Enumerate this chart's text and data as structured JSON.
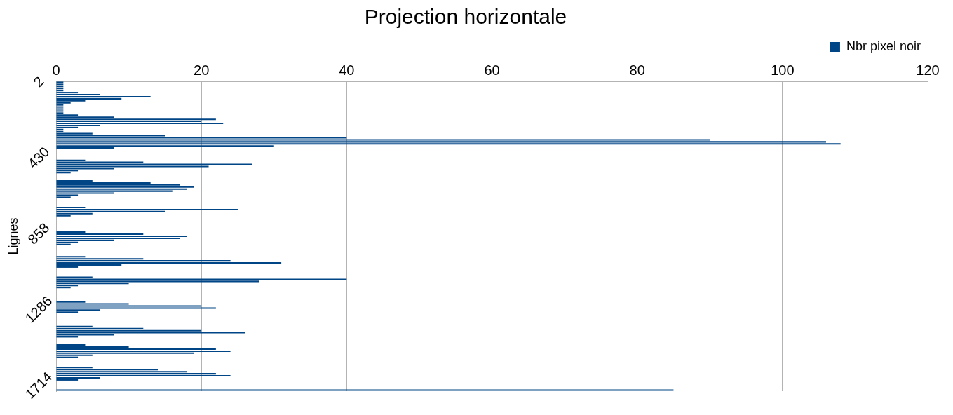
{
  "chart_data": {
    "type": "bar",
    "orientation": "horizontal",
    "title": "Projection horizontale",
    "ylabel": "Lignes",
    "categories": [
      "2",
      null,
      null,
      null,
      null,
      null,
      null,
      null,
      null,
      null,
      null,
      null,
      null,
      null,
      null,
      null,
      null,
      null,
      null,
      null,
      null,
      null,
      null,
      null,
      null,
      null,
      null,
      null,
      null,
      null,
      null,
      null,
      null,
      null,
      null,
      null,
      null,
      "430",
      null,
      null,
      null,
      null,
      null,
      null,
      null,
      null,
      null,
      null,
      null,
      null,
      null,
      null,
      null,
      null,
      null,
      null,
      null,
      null,
      null,
      null,
      null,
      null,
      null,
      null,
      null,
      null,
      null,
      null,
      null,
      null,
      null,
      null,
      null,
      null,
      "858",
      null,
      null,
      null,
      null,
      null,
      null,
      null,
      null,
      null,
      null,
      null,
      null,
      null,
      null,
      null,
      null,
      null,
      null,
      null,
      null,
      null,
      null,
      null,
      null,
      null,
      null,
      null,
      null,
      null,
      null,
      null,
      null,
      null,
      null,
      null,
      null,
      "1286",
      null,
      null,
      null,
      null,
      null,
      null,
      null,
      null,
      null,
      null,
      null,
      null,
      null,
      null,
      null,
      null,
      null,
      null,
      null,
      null,
      null,
      null,
      null,
      null,
      null,
      null,
      null,
      null,
      null,
      null,
      null,
      null,
      null,
      null,
      null,
      null,
      "1714",
      null,
      null
    ],
    "series": [
      {
        "name": "Nbr pixel noir",
        "color": "#004586",
        "values": [
          1,
          1,
          1,
          1,
          1,
          3,
          6,
          13,
          9,
          4,
          2,
          1,
          1,
          1,
          1,
          1,
          3,
          8,
          22,
          20,
          23,
          6,
          3,
          1,
          1,
          5,
          15,
          40,
          90,
          106,
          108,
          30,
          8,
          0,
          0,
          0,
          0,
          0,
          4,
          12,
          27,
          21,
          8,
          3,
          2,
          0,
          0,
          0,
          5,
          13,
          17,
          19,
          18,
          16,
          8,
          3,
          2,
          0,
          0,
          0,
          0,
          4,
          25,
          15,
          5,
          2,
          0,
          0,
          0,
          0,
          0,
          0,
          0,
          4,
          12,
          18,
          17,
          8,
          3,
          2,
          0,
          0,
          0,
          0,
          0,
          4,
          12,
          24,
          31,
          9,
          3,
          0,
          0,
          0,
          0,
          5,
          40,
          28,
          10,
          3,
          2,
          0,
          0,
          0,
          0,
          0,
          0,
          4,
          10,
          20,
          22,
          6,
          3,
          0,
          0,
          0,
          0,
          0,
          0,
          5,
          12,
          20,
          26,
          8,
          3,
          0,
          0,
          0,
          4,
          10,
          22,
          24,
          19,
          5,
          3,
          0,
          0,
          0,
          0,
          5,
          14,
          18,
          22,
          24,
          6,
          3,
          0,
          0,
          0,
          0,
          85
        ]
      }
    ],
    "xlim": [
      0,
      120
    ],
    "xticks": [
      0,
      20,
      40,
      60,
      80,
      100,
      120
    ],
    "grid": "x",
    "legend": "top right"
  }
}
